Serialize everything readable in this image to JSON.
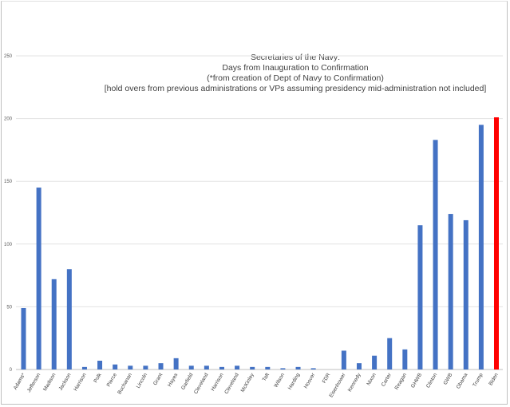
{
  "chart_data": {
    "type": "bar",
    "title_lines": [
      "Secretaries of the Navy:",
      "Days from Inauguration to Confirmation",
      "(*from creation of Dept of Navy to Confirmation)",
      "[hold overs from previous administrations or VPs assuming presidency mid-administration not included]"
    ],
    "categories": [
      "Adams*",
      "Jefferson",
      "Madison",
      "Jackson",
      "Harrison",
      "Polk",
      "Pierce",
      "Buchanan",
      "Lincoln",
      "Grant",
      "Hayes",
      "Garfield",
      "Cleveland",
      "Harrison",
      "Cleveland",
      "McKinley",
      "Taft",
      "Wilson",
      "Harding",
      "Hoover",
      "FDR",
      "Eisenhower",
      "Kennedy",
      "Nixon",
      "Carter",
      "Reagan",
      "GHWB",
      "Clinton",
      "GWB",
      "Obama",
      "Trump",
      "Biden"
    ],
    "values": [
      49,
      145,
      72,
      80,
      2,
      7,
      4,
      3,
      3,
      5,
      9,
      3,
      3,
      2,
      3,
      2,
      2,
      1,
      2,
      1,
      0,
      15,
      5,
      11,
      25,
      16,
      115,
      183,
      124,
      119,
      195,
      201
    ],
    "colors": {
      "default": "#4472c4",
      "highlight": "#ff0000"
    },
    "highlight_index": 31,
    "yticks": [
      0,
      50,
      100,
      150,
      200,
      250
    ],
    "ylim": [
      0,
      250
    ],
    "grid": true
  }
}
